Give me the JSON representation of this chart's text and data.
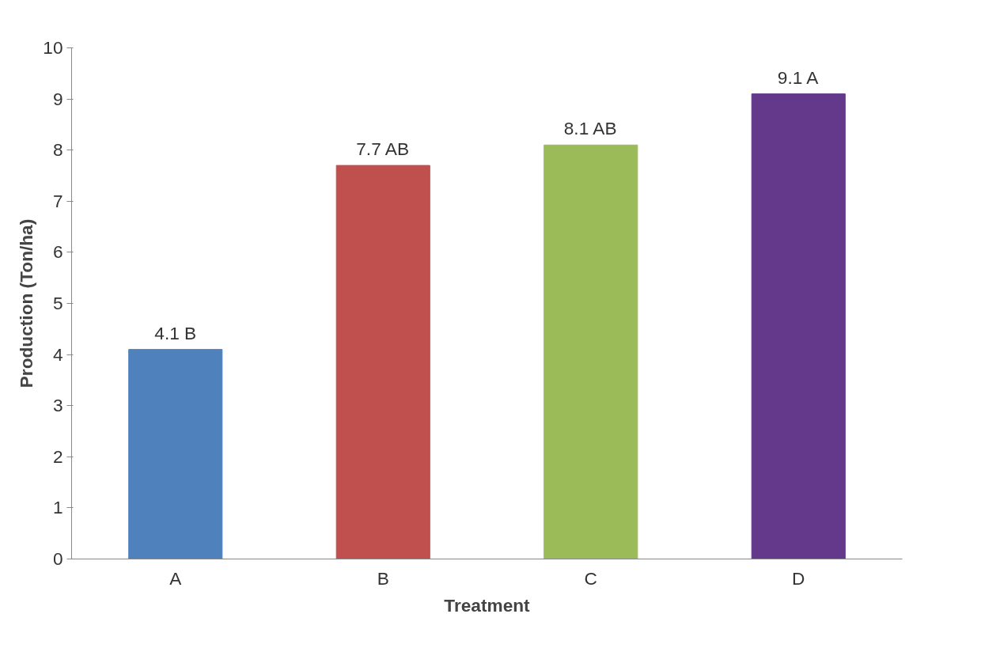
{
  "chart_data": {
    "type": "bar",
    "xlabel": "Treatment",
    "ylabel": "Production (Ton/ha)",
    "categories": [
      "A",
      "B",
      "C",
      "D"
    ],
    "values": [
      4.1,
      7.7,
      8.1,
      9.1
    ],
    "colors": [
      "#4f81bd",
      "#c0504d",
      "#9bbb59",
      "#64388a"
    ],
    "value_labels": [
      "4.1 B",
      "7.7 AB",
      "8.1 AB",
      "9.1 A"
    ],
    "ylim": [
      0,
      10
    ],
    "yticks": [
      0,
      1,
      2,
      3,
      4,
      5,
      6,
      7,
      8,
      9,
      10
    ],
    "grid": false
  }
}
